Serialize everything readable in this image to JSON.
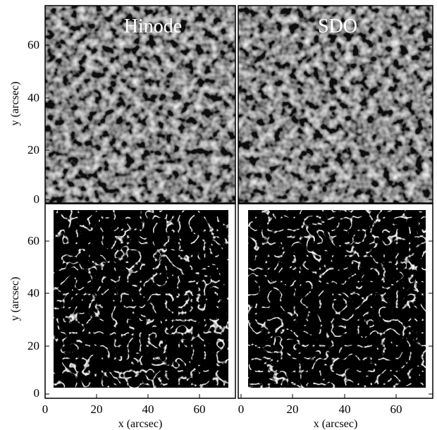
{
  "figure": {
    "panels": [
      {
        "id": "top-left",
        "title": "Hinode"
      },
      {
        "id": "top-right",
        "title": "SDO"
      },
      {
        "id": "bottom-left",
        "title": ""
      },
      {
        "id": "bottom-right",
        "title": ""
      }
    ],
    "x_axis": {
      "label": "x (arcsec)",
      "ticks": [
        "0",
        "20",
        "40",
        "60"
      ]
    },
    "y_axis": {
      "label": "y (arcsec)",
      "ticks": [
        "0",
        "20",
        "40",
        "60"
      ]
    },
    "colors": {
      "background": "#000000",
      "texture": "#ffffff",
      "frame": "#000000"
    }
  }
}
